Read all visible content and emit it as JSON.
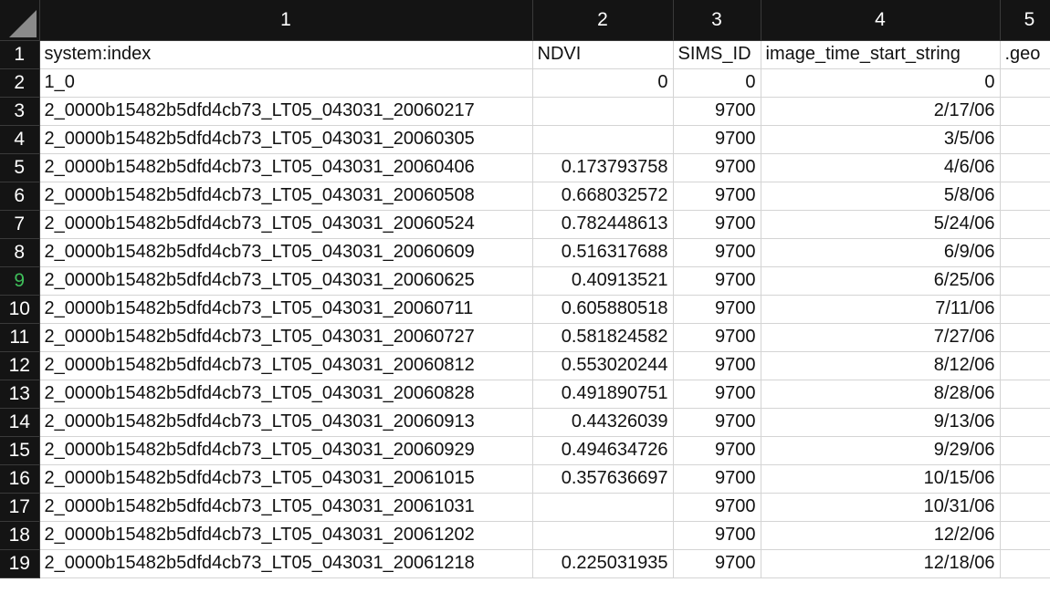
{
  "columns": [
    "1",
    "2",
    "3",
    "4",
    "5"
  ],
  "rows": [
    {
      "row": "1",
      "cells": [
        "system:index",
        "NDVI",
        "SIMS_ID",
        "image_time_start_string",
        ".geo"
      ]
    },
    {
      "row": "2",
      "cells": [
        "1_0",
        "0",
        "0",
        "0",
        ""
      ]
    },
    {
      "row": "3",
      "cells": [
        "2_0000b15482b5dfd4cb73_LT05_043031_20060217",
        "",
        "9700",
        "2/17/06",
        ""
      ]
    },
    {
      "row": "4",
      "cells": [
        "2_0000b15482b5dfd4cb73_LT05_043031_20060305",
        "",
        "9700",
        "3/5/06",
        ""
      ]
    },
    {
      "row": "5",
      "cells": [
        "2_0000b15482b5dfd4cb73_LT05_043031_20060406",
        "0.173793758",
        "9700",
        "4/6/06",
        ""
      ]
    },
    {
      "row": "6",
      "cells": [
        "2_0000b15482b5dfd4cb73_LT05_043031_20060508",
        "0.668032572",
        "9700",
        "5/8/06",
        ""
      ]
    },
    {
      "row": "7",
      "cells": [
        "2_0000b15482b5dfd4cb73_LT05_043031_20060524",
        "0.782448613",
        "9700",
        "5/24/06",
        ""
      ]
    },
    {
      "row": "8",
      "cells": [
        "2_0000b15482b5dfd4cb73_LT05_043031_20060609",
        "0.516317688",
        "9700",
        "6/9/06",
        ""
      ]
    },
    {
      "row": "9",
      "cells": [
        "2_0000b15482b5dfd4cb73_LT05_043031_20060625",
        "0.40913521",
        "9700",
        "6/25/06",
        ""
      ]
    },
    {
      "row": "10",
      "cells": [
        "2_0000b15482b5dfd4cb73_LT05_043031_20060711",
        "0.605880518",
        "9700",
        "7/11/06",
        ""
      ]
    },
    {
      "row": "11",
      "cells": [
        "2_0000b15482b5dfd4cb73_LT05_043031_20060727",
        "0.581824582",
        "9700",
        "7/27/06",
        ""
      ]
    },
    {
      "row": "12",
      "cells": [
        "2_0000b15482b5dfd4cb73_LT05_043031_20060812",
        "0.553020244",
        "9700",
        "8/12/06",
        ""
      ]
    },
    {
      "row": "13",
      "cells": [
        "2_0000b15482b5dfd4cb73_LT05_043031_20060828",
        "0.491890751",
        "9700",
        "8/28/06",
        ""
      ]
    },
    {
      "row": "14",
      "cells": [
        "2_0000b15482b5dfd4cb73_LT05_043031_20060913",
        "0.44326039",
        "9700",
        "9/13/06",
        ""
      ]
    },
    {
      "row": "15",
      "cells": [
        "2_0000b15482b5dfd4cb73_LT05_043031_20060929",
        "0.494634726",
        "9700",
        "9/29/06",
        ""
      ]
    },
    {
      "row": "16",
      "cells": [
        "2_0000b15482b5dfd4cb73_LT05_043031_20061015",
        "0.357636697",
        "9700",
        "10/15/06",
        ""
      ]
    },
    {
      "row": "17",
      "cells": [
        "2_0000b15482b5dfd4cb73_LT05_043031_20061031",
        "",
        "9700",
        "10/31/06",
        ""
      ]
    },
    {
      "row": "18",
      "cells": [
        "2_0000b15482b5dfd4cb73_LT05_043031_20061202",
        "",
        "9700",
        "12/2/06",
        ""
      ]
    },
    {
      "row": "19",
      "cells": [
        "2_0000b15482b5dfd4cb73_LT05_043031_20061218",
        "0.225031935",
        "9700",
        "12/18/06",
        ""
      ]
    }
  ],
  "selected_row": "9",
  "colors": {
    "header_bg": "#141414",
    "header_text": "#ffffff",
    "selected_row_header": "#3fbf5a",
    "gridline": "#d4d4d4"
  }
}
